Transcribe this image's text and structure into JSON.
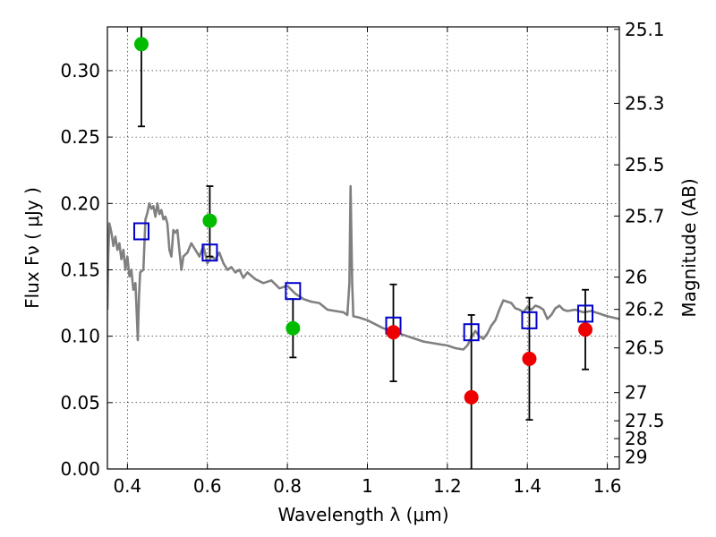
{
  "chart_data": {
    "type": "scatter",
    "title": "",
    "xlabel": "Wavelength  λ (μm)",
    "ylabel": "Flux  Fν  ( μJy )",
    "y2label": "Magnitude (AB)",
    "xlim": [
      0.35,
      1.63
    ],
    "ylim": [
      0.0,
      0.333
    ],
    "grid": true,
    "x_ticks": [
      {
        "value": 0.4,
        "label": "0.4"
      },
      {
        "value": 0.6,
        "label": "0.6"
      },
      {
        "value": 0.8,
        "label": "0.8"
      },
      {
        "value": 1.0,
        "label": "1"
      },
      {
        "value": 1.2,
        "label": "1.2"
      },
      {
        "value": 1.4,
        "label": "1.4"
      },
      {
        "value": 1.6,
        "label": "1.6"
      }
    ],
    "y_ticks": [
      {
        "value": 0.0,
        "label": "0.00"
      },
      {
        "value": 0.05,
        "label": "0.05"
      },
      {
        "value": 0.1,
        "label": "0.10"
      },
      {
        "value": 0.15,
        "label": "0.15"
      },
      {
        "value": 0.2,
        "label": "0.20"
      },
      {
        "value": 0.25,
        "label": "0.25"
      },
      {
        "value": 0.3,
        "label": "0.30"
      }
    ],
    "y2_ticks": [
      {
        "flux": 0.3311,
        "label": "25.1"
      },
      {
        "flux": 0.2754,
        "label": "25.3"
      },
      {
        "flux": 0.2291,
        "label": "25.5"
      },
      {
        "flux": 0.1905,
        "label": "25.7"
      },
      {
        "flux": 0.1445,
        "label": "26"
      },
      {
        "flux": 0.1202,
        "label": "26.2"
      },
      {
        "flux": 0.0912,
        "label": "26.5"
      },
      {
        "flux": 0.0575,
        "label": "27"
      },
      {
        "flux": 0.0363,
        "label": "27.5"
      },
      {
        "flux": 0.0229,
        "label": "28"
      },
      {
        "flux": 0.0091,
        "label": "29"
      }
    ],
    "series": [
      {
        "kind": "observed-detection",
        "color": "#00bb00",
        "points": [
          {
            "x": 0.435,
            "y": 0.32,
            "err_low": 0.258,
            "err_high": 0.333
          },
          {
            "x": 0.606,
            "y": 0.187,
            "err_low": 0.16,
            "err_high": 0.213
          },
          {
            "x": 0.814,
            "y": 0.106,
            "err_low": 0.084,
            "err_high": 0.128
          }
        ]
      },
      {
        "kind": "observed-nir",
        "color": "#ee0000",
        "points": [
          {
            "x": 1.065,
            "y": 0.103,
            "err_low": 0.066,
            "err_high": 0.139
          },
          {
            "x": 1.26,
            "y": 0.054,
            "err_low": 0.0,
            "err_high": 0.116
          },
          {
            "x": 1.405,
            "y": 0.083,
            "err_low": 0.037,
            "err_high": 0.129
          },
          {
            "x": 1.545,
            "y": 0.105,
            "err_low": 0.075,
            "err_high": 0.135
          }
        ]
      },
      {
        "kind": "model-photometry",
        "color": "#0000cc",
        "points": [
          {
            "x": 0.435,
            "y": 0.179
          },
          {
            "x": 0.606,
            "y": 0.163
          },
          {
            "x": 0.814,
            "y": 0.134
          },
          {
            "x": 1.065,
            "y": 0.108
          },
          {
            "x": 1.26,
            "y": 0.103
          },
          {
            "x": 1.405,
            "y": 0.112
          },
          {
            "x": 1.545,
            "y": 0.117
          }
        ]
      },
      {
        "kind": "model-spectrum",
        "color": "#808080",
        "points": [
          [
            0.35,
            0.12
          ],
          [
            0.352,
            0.16
          ],
          [
            0.355,
            0.185
          ],
          [
            0.36,
            0.178
          ],
          [
            0.365,
            0.168
          ],
          [
            0.37,
            0.175
          ],
          [
            0.375,
            0.165
          ],
          [
            0.38,
            0.17
          ],
          [
            0.385,
            0.158
          ],
          [
            0.39,
            0.165
          ],
          [
            0.395,
            0.15
          ],
          [
            0.4,
            0.16
          ],
          [
            0.405,
            0.145
          ],
          [
            0.41,
            0.15
          ],
          [
            0.415,
            0.135
          ],
          [
            0.42,
            0.14
          ],
          [
            0.423,
            0.12
          ],
          [
            0.426,
            0.097
          ],
          [
            0.429,
            0.13
          ],
          [
            0.432,
            0.148
          ],
          [
            0.44,
            0.15
          ],
          [
            0.445,
            0.188
          ],
          [
            0.45,
            0.193
          ],
          [
            0.455,
            0.2
          ],
          [
            0.46,
            0.196
          ],
          [
            0.465,
            0.198
          ],
          [
            0.47,
            0.19
          ],
          [
            0.475,
            0.2
          ],
          [
            0.48,
            0.192
          ],
          [
            0.485,
            0.195
          ],
          [
            0.49,
            0.188
          ],
          [
            0.495,
            0.19
          ],
          [
            0.5,
            0.185
          ],
          [
            0.505,
            0.165
          ],
          [
            0.51,
            0.16
          ],
          [
            0.515,
            0.18
          ],
          [
            0.52,
            0.178
          ],
          [
            0.525,
            0.18
          ],
          [
            0.53,
            0.165
          ],
          [
            0.535,
            0.15
          ],
          [
            0.54,
            0.16
          ],
          [
            0.55,
            0.163
          ],
          [
            0.56,
            0.17
          ],
          [
            0.57,
            0.165
          ],
          [
            0.58,
            0.16
          ],
          [
            0.59,
            0.168
          ],
          [
            0.6,
            0.155
          ],
          [
            0.61,
            0.16
          ],
          [
            0.62,
            0.158
          ],
          [
            0.63,
            0.163
          ],
          [
            0.64,
            0.155
          ],
          [
            0.65,
            0.15
          ],
          [
            0.66,
            0.152
          ],
          [
            0.67,
            0.148
          ],
          [
            0.68,
            0.15
          ],
          [
            0.69,
            0.144
          ],
          [
            0.7,
            0.148
          ],
          [
            0.72,
            0.143
          ],
          [
            0.74,
            0.14
          ],
          [
            0.76,
            0.142
          ],
          [
            0.78,
            0.136
          ],
          [
            0.8,
            0.138
          ],
          [
            0.82,
            0.132
          ],
          [
            0.84,
            0.128
          ],
          [
            0.86,
            0.126
          ],
          [
            0.88,
            0.125
          ],
          [
            0.9,
            0.12
          ],
          [
            0.92,
            0.119
          ],
          [
            0.94,
            0.118
          ],
          [
            0.95,
            0.116
          ],
          [
            0.955,
            0.14
          ],
          [
            0.958,
            0.213
          ],
          [
            0.962,
            0.14
          ],
          [
            0.965,
            0.115
          ],
          [
            0.98,
            0.114
          ],
          [
            1.0,
            0.112
          ],
          [
            1.02,
            0.109
          ],
          [
            1.04,
            0.106
          ],
          [
            1.06,
            0.104
          ],
          [
            1.08,
            0.102
          ],
          [
            1.1,
            0.1
          ],
          [
            1.12,
            0.098
          ],
          [
            1.14,
            0.096
          ],
          [
            1.16,
            0.095
          ],
          [
            1.18,
            0.094
          ],
          [
            1.2,
            0.093
          ],
          [
            1.22,
            0.091
          ],
          [
            1.24,
            0.09
          ],
          [
            1.25,
            0.093
          ],
          [
            1.26,
            0.099
          ],
          [
            1.27,
            0.104
          ],
          [
            1.28,
            0.1
          ],
          [
            1.29,
            0.098
          ],
          [
            1.3,
            0.102
          ],
          [
            1.31,
            0.108
          ],
          [
            1.32,
            0.112
          ],
          [
            1.33,
            0.12
          ],
          [
            1.34,
            0.127
          ],
          [
            1.35,
            0.126
          ],
          [
            1.36,
            0.125
          ],
          [
            1.37,
            0.121
          ],
          [
            1.38,
            0.12
          ],
          [
            1.39,
            0.118
          ],
          [
            1.4,
            0.122
          ],
          [
            1.41,
            0.12
          ],
          [
            1.42,
            0.123
          ],
          [
            1.43,
            0.122
          ],
          [
            1.44,
            0.12
          ],
          [
            1.45,
            0.113
          ],
          [
            1.46,
            0.116
          ],
          [
            1.47,
            0.121
          ],
          [
            1.48,
            0.123
          ],
          [
            1.49,
            0.12
          ],
          [
            1.5,
            0.119
          ],
          [
            1.52,
            0.12
          ],
          [
            1.54,
            0.118
          ],
          [
            1.56,
            0.119
          ],
          [
            1.58,
            0.117
          ],
          [
            1.6,
            0.115
          ],
          [
            1.63,
            0.113
          ]
        ]
      }
    ]
  }
}
